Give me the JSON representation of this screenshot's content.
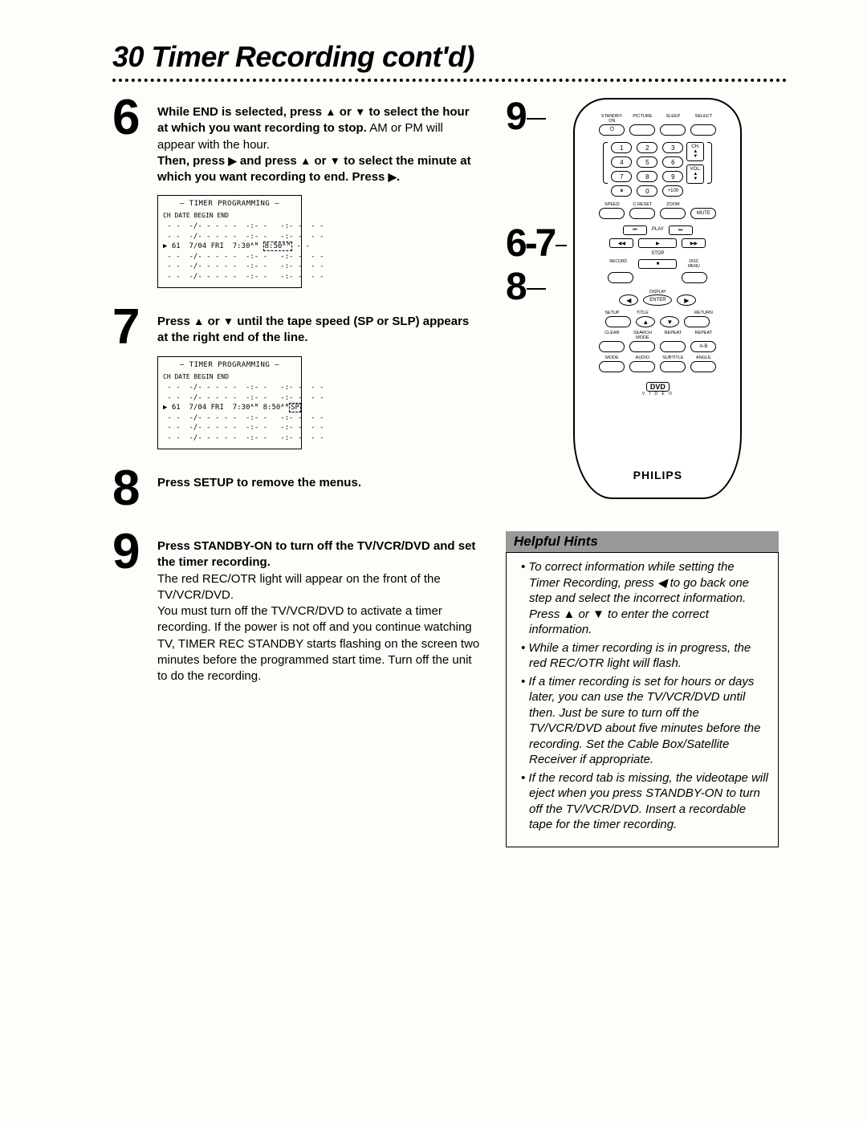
{
  "page_title": "30  Timer Recording cont'd)",
  "steps": {
    "s6": {
      "num": "6",
      "text_html": "<span class=\"bold\">While END is selected, press <span class=\"tri\">▲</span> or <span class=\"tri\">▼</span> to select the hour at which you want recording to stop.</span> AM or PM will appear with the hour.<br><span class=\"bold\">Then, press <span class=\"tri\">▶</span> and press <span class=\"tri\">▲</span> or <span class=\"tri\">▼</span> to select the minute at which you want recording to end. Press <span class=\"tri\">▶</span>.</span>"
    },
    "s7": {
      "num": "7",
      "text_html": "<span class=\"bold\">Press <span class=\"tri\">▲</span> or <span class=\"tri\">▼</span> until the tape speed (SP or SLP) appears at the right end of the line.</span>"
    },
    "s8": {
      "num": "8",
      "text_html": "<span class=\"bold\">Press SETUP to remove the menus.</span>"
    },
    "s9": {
      "num": "9",
      "text_html": "<span class=\"bold\">Press STANDBY-ON to turn off the TV/VCR/DVD and set the timer recording.</span><br>The red REC/OTR light will appear on the front of the TV/VCR/DVD.<br>You must turn off the TV/VCR/DVD to activate a timer recording. If the power is not off and you continue watching TV, TIMER REC STANDBY starts flashing on the screen two minutes before the programmed start time. Turn off the unit to do the recording."
    }
  },
  "timer_box": {
    "title": "– TIMER PROGRAMMING –",
    "header": " CH  DATE      BEGIN END",
    "empty_row": " - -  -/- - - - -  -:- -   -:- -  - -",
    "row6_prefix": "▶ 61  7/04 FRI  7:30ᴬᴹ ",
    "row6_hl_a": "8:50ᴬᴹ",
    "row6_suffix_a": " - -",
    "row7_prefix": "▶ 61  7/04 FRI  7:30ᴬᴹ 8:50ᴬᴹ",
    "row7_hl": "SP"
  },
  "callouts": {
    "c9": "9",
    "c67": "6-7",
    "c8": "8"
  },
  "remote": {
    "top_labels": [
      "STANDBY-ON",
      "PICTURE",
      "SLEEP",
      "SELECT"
    ],
    "row2_labels": [
      "SPEED",
      "C.RESET",
      "ZOOM",
      ""
    ],
    "mute": "MUTE",
    "play": "PLAY",
    "stop": "STOP",
    "record": "RECORD",
    "disc_menu": "DISC\nMENU",
    "display": "DISPLAY",
    "enter": "ENTER",
    "setup": "SETUP",
    "title": "TITLE",
    "return": "RETURN",
    "grid": [
      "CLEAR",
      "SEARCH MODE",
      "REPEAT",
      "REPEAT",
      "",
      "",
      "",
      "A-B",
      "MODE",
      "AUDIO",
      "SUBTITLE",
      "ANGLE"
    ],
    "ch": "CH.",
    "vol": "VOL.",
    "plus100": "+100",
    "brand": "PHILIPS",
    "dvd": "DVD",
    "dvd_sub": "V I D E O"
  },
  "hints": {
    "title": "Helpful Hints",
    "items": [
      "To correct information while setting the Timer Recording, press ◀ to go back one step and select the incorrect information. Press ▲ or ▼ to enter the correct information.",
      "While a timer recording is in progress, the red REC/OTR light will flash.",
      "If a timer recording is set for hours or days later, you can use the TV/VCR/DVD until then. Just be sure to turn off the TV/VCR/DVD about five minutes before the recording. Set the Cable Box/Satellite Receiver if appropriate.",
      "If the record tab is missing, the videotape will eject when you press STANDBY-ON to turn off the TV/VCR/DVD. Insert a recordable tape for the timer recording."
    ]
  }
}
